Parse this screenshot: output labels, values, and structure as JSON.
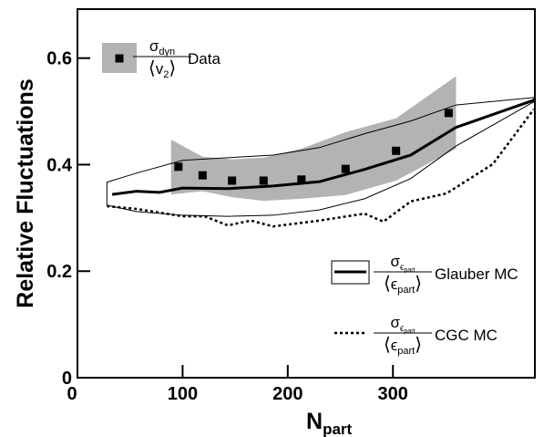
{
  "chart_data": {
    "type": "line",
    "y_label": "Relative Fluctuations",
    "x_label": "N",
    "x_label_sub": "part",
    "xlim": [
      0,
      435
    ],
    "xticks": [
      0,
      100,
      200,
      300
    ],
    "ylim": [
      0,
      0.692
    ],
    "yticks": [
      0,
      0.2,
      0.4,
      0.6
    ],
    "series": [
      {
        "name": "Data",
        "style": "markers",
        "color": "#000000",
        "band_color": "#b3b3b3",
        "legend_symbol": "σ",
        "legend_symbol_sub": "dyn",
        "legend_mean_open": "⟨",
        "legend_mean_symbol": "v",
        "legend_mean_sub": "2",
        "legend_mean_close": "⟩",
        "x": [
          96,
          119,
          147,
          177,
          213,
          255,
          303,
          353
        ],
        "values": [
          0.396,
          0.38,
          0.37,
          0.37,
          0.372,
          0.392,
          0.426,
          0.497
        ],
        "band_x": [
          89,
          119,
          147,
          177,
          213,
          255,
          303,
          360
        ],
        "band_upper": [
          0.447,
          0.415,
          0.41,
          0.413,
          0.43,
          0.461,
          0.487,
          0.566
        ],
        "band_lower": [
          0.344,
          0.35,
          0.339,
          0.332,
          0.336,
          0.343,
          0.37,
          0.43
        ]
      },
      {
        "name": "Glauber MC",
        "style": "solid",
        "color": "#000000",
        "legend_symbol": "σ",
        "legend_symbol_sub": "ϵ",
        "legend_symbol_subsub": "part",
        "legend_mean_open": "⟨",
        "legend_mean_symbol": "ϵ",
        "legend_mean_sub": "part",
        "legend_mean_close": "⟩",
        "x": [
          33,
          56,
          78,
          100,
          143,
          186,
          230,
          273,
          317,
          360,
          434
        ],
        "values": [
          0.344,
          0.35,
          0.348,
          0.356,
          0.355,
          0.36,
          0.368,
          0.391,
          0.418,
          0.47,
          0.521
        ],
        "band_x": [
          28,
          56,
          100,
          143,
          186,
          230,
          273,
          317,
          360,
          434
        ],
        "band_upper": [
          0.367,
          0.384,
          0.408,
          0.413,
          0.418,
          0.432,
          0.458,
          0.482,
          0.512,
          0.526
        ],
        "band_lower": [
          0.324,
          0.312,
          0.305,
          0.303,
          0.305,
          0.315,
          0.336,
          0.374,
          0.435,
          0.518
        ]
      },
      {
        "name": "CGC MC",
        "style": "dotted",
        "color": "#000000",
        "legend_symbol": "σ",
        "legend_symbol_sub": "ϵ",
        "legend_symbol_subsub": "part",
        "legend_mean_open": "⟨",
        "legend_mean_symbol": "ϵ",
        "legend_mean_sub": "part",
        "legend_mean_close": "⟩",
        "x": [
          28,
          56,
          100,
          121,
          143,
          165,
          186,
          230,
          273,
          291,
          317,
          351,
          395,
          434
        ],
        "values": [
          0.322,
          0.317,
          0.303,
          0.303,
          0.286,
          0.295,
          0.284,
          0.295,
          0.308,
          0.293,
          0.331,
          0.346,
          0.401,
          0.504
        ]
      }
    ]
  }
}
